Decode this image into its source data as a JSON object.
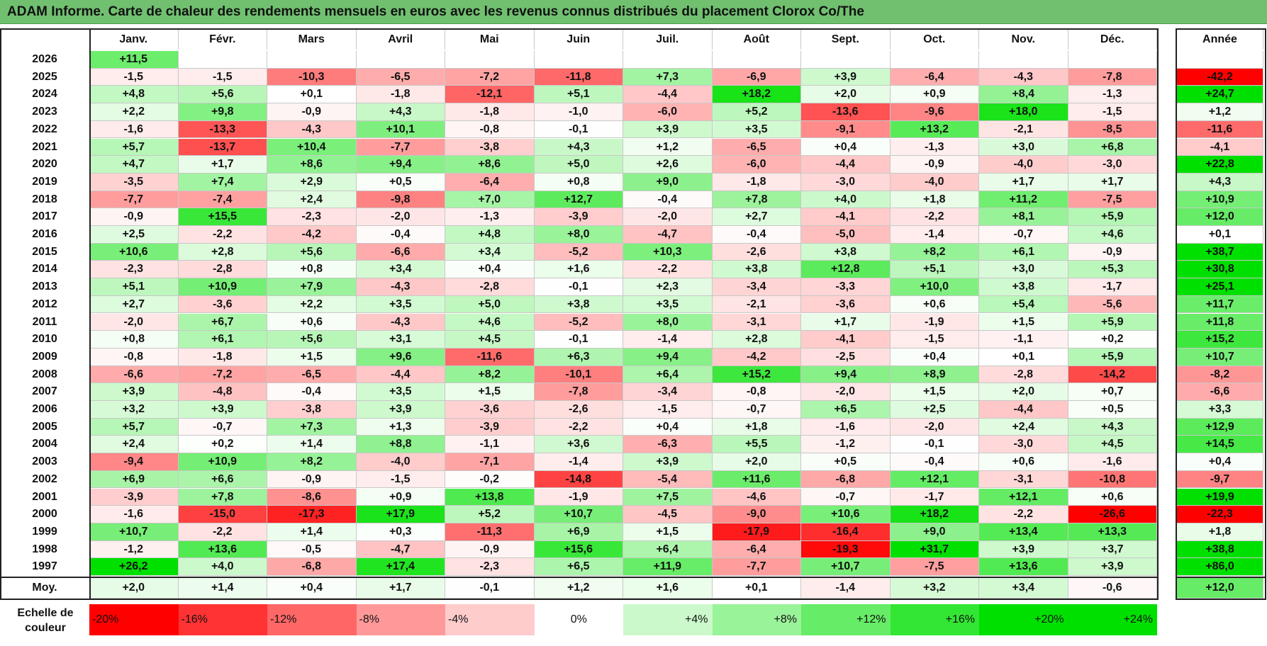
{
  "title": "ADAM Informe. Carte de chaleur des rendements mensuels en euros avec les revenus connus distribués du placement Clorox Co/The",
  "chart_data": {
    "type": "heatmap",
    "title": "ADAM Informe. Carte de chaleur des rendements mensuels en euros avec les revenus connus distribués du placement Clorox Co/The",
    "months": [
      "Janv.",
      "Févr.",
      "Mars",
      "Avril",
      "Mai",
      "Juin",
      "Juil.",
      "Août",
      "Sept.",
      "Oct.",
      "Nov.",
      "Déc."
    ],
    "year_header": "Année",
    "avg_label": "Moy.",
    "rows": [
      {
        "year": "2026",
        "values": [
          11.5,
          null,
          null,
          null,
          null,
          null,
          null,
          null,
          null,
          null,
          null,
          null
        ],
        "annual": null
      },
      {
        "year": "2025",
        "values": [
          -1.5,
          -1.5,
          -10.3,
          -6.5,
          -7.2,
          -11.8,
          7.3,
          -6.9,
          3.9,
          -6.4,
          -4.3,
          -7.8
        ],
        "annual": -42.2
      },
      {
        "year": "2024",
        "values": [
          4.8,
          5.6,
          0.1,
          -1.8,
          -12.1,
          5.1,
          -4.4,
          18.2,
          2.0,
          0.9,
          8.4,
          -1.3
        ],
        "annual": 24.7
      },
      {
        "year": "2023",
        "values": [
          2.2,
          9.8,
          -0.9,
          4.3,
          -1.8,
          -1.0,
          -6.0,
          5.2,
          -13.6,
          -9.6,
          18.0,
          -1.5
        ],
        "annual": 1.2
      },
      {
        "year": "2022",
        "values": [
          -1.6,
          -13.3,
          -4.3,
          10.1,
          -0.8,
          -0.1,
          3.9,
          3.5,
          -9.1,
          13.2,
          -2.1,
          -8.5
        ],
        "annual": -11.6
      },
      {
        "year": "2021",
        "values": [
          5.7,
          -13.7,
          10.4,
          -7.7,
          -3.8,
          4.3,
          1.2,
          -6.5,
          0.4,
          -1.3,
          3.0,
          6.8
        ],
        "annual": -4.1
      },
      {
        "year": "2020",
        "values": [
          4.7,
          1.7,
          8.6,
          9.4,
          8.6,
          5.0,
          2.6,
          -6.0,
          -4.4,
          -0.9,
          -4.0,
          -3.0
        ],
        "annual": 22.8
      },
      {
        "year": "2019",
        "values": [
          -3.5,
          7.4,
          2.9,
          0.5,
          -6.4,
          0.8,
          9.0,
          -1.8,
          -3.0,
          -4.0,
          1.7,
          1.7
        ],
        "annual": 4.3
      },
      {
        "year": "2018",
        "values": [
          -7.7,
          -7.4,
          2.4,
          -9.8,
          7.0,
          12.7,
          -0.4,
          7.8,
          4.0,
          1.8,
          11.2,
          -7.5
        ],
        "annual": 10.9
      },
      {
        "year": "2017",
        "values": [
          -0.9,
          15.5,
          -2.3,
          -2.0,
          -1.3,
          -3.9,
          -2.0,
          2.7,
          -4.1,
          -2.2,
          8.1,
          5.9
        ],
        "annual": 12.0
      },
      {
        "year": "2016",
        "values": [
          2.5,
          -2.2,
          -4.2,
          -0.4,
          4.8,
          8.0,
          -4.7,
          -0.4,
          -5.0,
          -1.4,
          -0.7,
          4.6
        ],
        "annual": 0.1
      },
      {
        "year": "2015",
        "values": [
          10.6,
          2.8,
          5.6,
          -6.6,
          3.4,
          -5.2,
          10.3,
          -2.6,
          3.8,
          8.2,
          6.1,
          -0.9
        ],
        "annual": 38.7
      },
      {
        "year": "2014",
        "values": [
          -2.3,
          -2.8,
          0.8,
          3.4,
          0.4,
          1.6,
          -2.2,
          3.8,
          12.8,
          5.1,
          3.0,
          5.3
        ],
        "annual": 30.8
      },
      {
        "year": "2013",
        "values": [
          5.1,
          10.9,
          7.9,
          -4.3,
          -2.8,
          -0.1,
          2.3,
          -3.4,
          -3.3,
          10.0,
          3.8,
          -1.7
        ],
        "annual": 25.1
      },
      {
        "year": "2012",
        "values": [
          2.7,
          -3.6,
          2.2,
          3.5,
          5.0,
          3.8,
          3.5,
          -2.1,
          -3.6,
          0.6,
          5.4,
          -5.6
        ],
        "annual": 11.7
      },
      {
        "year": "2011",
        "values": [
          -2.0,
          6.7,
          0.6,
          -4.3,
          4.6,
          -5.2,
          8.0,
          -3.1,
          1.7,
          -1.9,
          1.5,
          5.9
        ],
        "annual": 11.8
      },
      {
        "year": "2010",
        "values": [
          0.8,
          6.1,
          5.6,
          3.1,
          4.5,
          -0.1,
          -1.4,
          2.8,
          -4.1,
          -1.5,
          -1.1,
          0.2
        ],
        "annual": 15.2
      },
      {
        "year": "2009",
        "values": [
          -0.8,
          -1.8,
          1.5,
          9.6,
          -11.6,
          6.3,
          9.4,
          -4.2,
          -2.5,
          0.4,
          0.1,
          5.9
        ],
        "annual": 10.7
      },
      {
        "year": "2008",
        "values": [
          -6.6,
          -7.2,
          -6.5,
          -4.4,
          8.2,
          -10.1,
          6.4,
          15.2,
          9.4,
          8.9,
          -2.8,
          -14.2
        ],
        "annual": -8.2
      },
      {
        "year": "2007",
        "values": [
          3.9,
          -4.8,
          -0.4,
          3.5,
          1.5,
          -7.8,
          -3.4,
          -0.8,
          -2.0,
          1.5,
          2.0,
          0.7
        ],
        "annual": -6.6
      },
      {
        "year": "2006",
        "values": [
          3.2,
          3.9,
          -3.8,
          3.9,
          -3.6,
          -2.6,
          -1.5,
          -0.7,
          6.5,
          2.5,
          -4.4,
          0.5
        ],
        "annual": 3.3
      },
      {
        "year": "2005",
        "values": [
          5.7,
          -0.7,
          7.3,
          1.3,
          -3.9,
          -2.2,
          0.4,
          1.8,
          -1.6,
          -2.0,
          2.4,
          4.3
        ],
        "annual": 12.9
      },
      {
        "year": "2004",
        "values": [
          2.4,
          0.2,
          1.4,
          8.8,
          -1.1,
          3.6,
          -6.3,
          5.5,
          -1.2,
          -0.1,
          -3.0,
          4.5
        ],
        "annual": 14.5
      },
      {
        "year": "2003",
        "values": [
          -9.4,
          10.9,
          8.2,
          -4.0,
          -7.1,
          -1.4,
          3.9,
          2.0,
          0.5,
          -0.4,
          0.6,
          -1.6
        ],
        "annual": 0.4
      },
      {
        "year": "2002",
        "values": [
          6.9,
          6.6,
          -0.9,
          -1.5,
          -0.2,
          -14.8,
          -5.4,
          11.6,
          -6.8,
          12.1,
          -3.1,
          -10.8
        ],
        "annual": -9.7
      },
      {
        "year": "2001",
        "values": [
          -3.9,
          7.8,
          -8.6,
          0.9,
          13.8,
          -1.9,
          7.5,
          -4.6,
          -0.7,
          -1.7,
          12.1,
          0.6
        ],
        "annual": 19.9
      },
      {
        "year": "2000",
        "values": [
          -1.6,
          -15.0,
          -17.3,
          17.9,
          5.2,
          10.7,
          -4.5,
          -9.0,
          10.6,
          18.2,
          -2.2,
          -26.6
        ],
        "annual": -22.3
      },
      {
        "year": "1999",
        "values": [
          10.7,
          -2.2,
          1.4,
          0.3,
          -11.3,
          6.9,
          1.5,
          -17.9,
          -16.4,
          9.0,
          13.4,
          13.3
        ],
        "annual": 1.8
      },
      {
        "year": "1998",
        "values": [
          -1.2,
          13.6,
          -0.5,
          -4.7,
          -0.9,
          15.6,
          6.4,
          -6.4,
          -19.3,
          31.7,
          3.9,
          3.7
        ],
        "annual": 38.8
      },
      {
        "year": "1997",
        "values": [
          26.2,
          4.0,
          -6.8,
          17.4,
          -2.3,
          6.5,
          11.9,
          -7.7,
          10.7,
          -7.5,
          13.6,
          3.9
        ],
        "annual": 86.0
      }
    ],
    "averages": [
      2.0,
      1.4,
      0.4,
      1.7,
      -0.1,
      1.2,
      1.6,
      0.1,
      -1.4,
      3.2,
      3.4,
      -0.6
    ],
    "average_annual": 12.0,
    "color_scale_label": "Echelle de couleur",
    "color_scale": [
      {
        "label": "-20%",
        "value": -20
      },
      {
        "label": "-16%",
        "value": -16
      },
      {
        "label": "-12%",
        "value": -12
      },
      {
        "label": "-8%",
        "value": -8
      },
      {
        "label": "-4%",
        "value": -4
      },
      {
        "label": "0%",
        "value": 0
      },
      {
        "label": "+4%",
        "value": 4
      },
      {
        "label": "+8%",
        "value": 8
      },
      {
        "label": "+12%",
        "value": 12
      },
      {
        "label": "+16%",
        "value": 16
      },
      {
        "label": "+20%",
        "value": 20
      },
      {
        "label": "+24%",
        "value": 24
      }
    ]
  },
  "colors": {
    "title_bar": "#70c070",
    "negative_max": "#ff0000",
    "positive_max": "#00e000",
    "neutral": "#ffffff"
  }
}
